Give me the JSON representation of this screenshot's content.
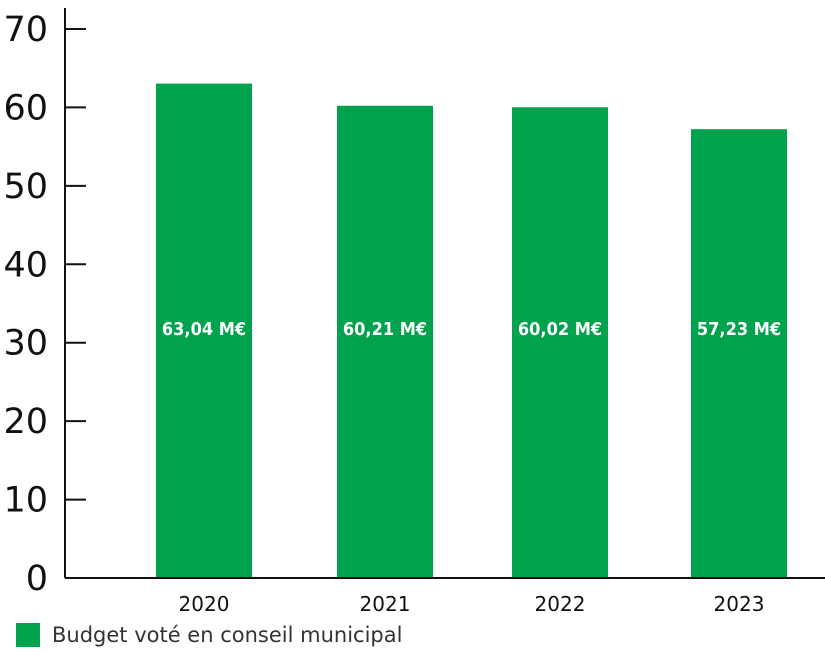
{
  "chart_data": {
    "type": "bar",
    "categories": [
      "2020",
      "2021",
      "2022",
      "2023"
    ],
    "series": [
      {
        "name": "Budget voté en conseil municipal",
        "values": [
          63.04,
          60.21,
          60.02,
          57.23
        ],
        "labels": [
          "63,04 M€",
          "60,21 M€",
          "60,02 M€",
          "57,23 M€"
        ]
      }
    ],
    "ylim": [
      0,
      70
    ],
    "yticks": [
      "0",
      "10",
      "20",
      "30",
      "40",
      "50",
      "60",
      "70"
    ],
    "grid": false,
    "legend_position": "bottom-left",
    "colors": {
      "bar": "#00a24e",
      "axis": "#111111"
    }
  }
}
